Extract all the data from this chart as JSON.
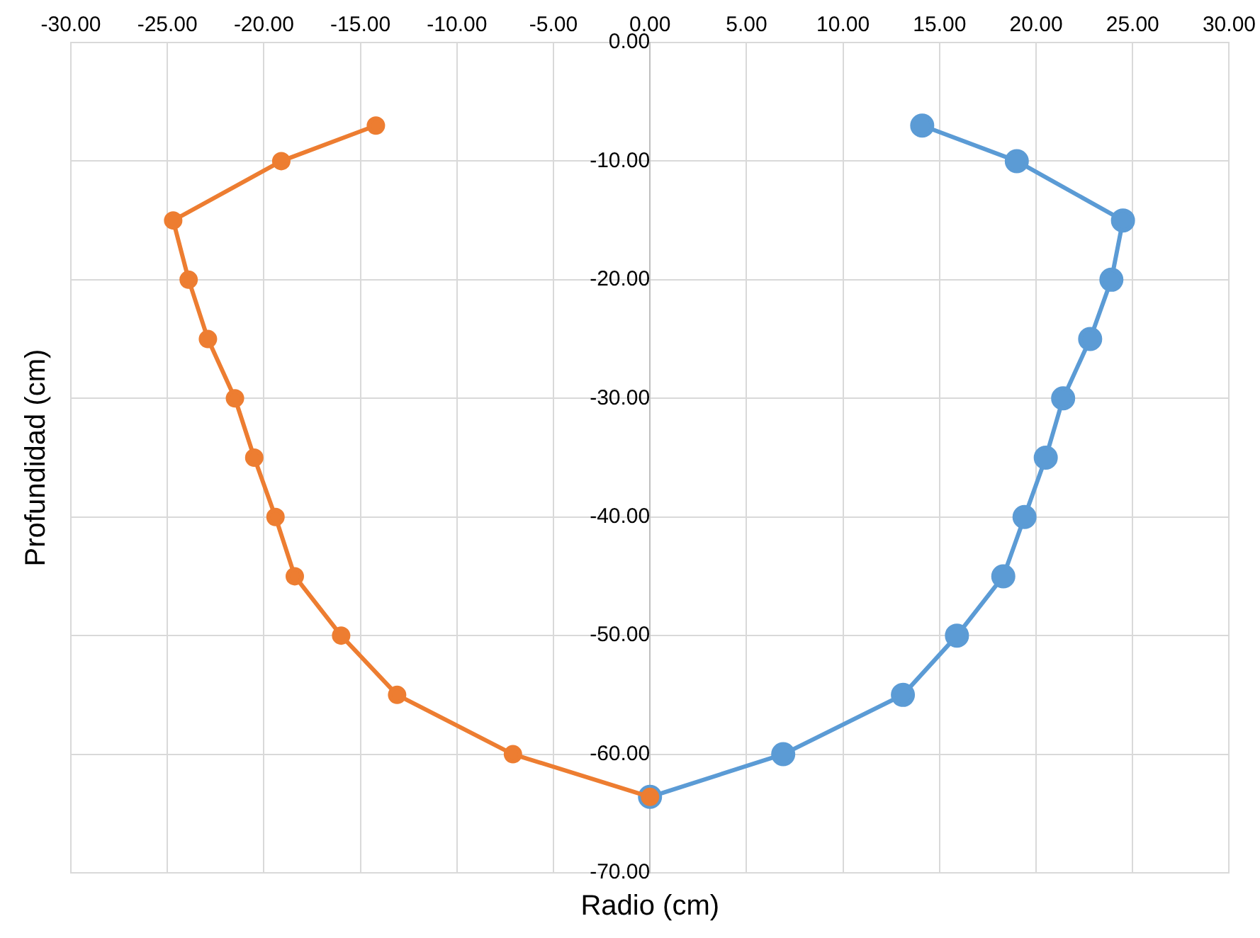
{
  "chart_data": {
    "type": "line",
    "xlabel": "Radio (cm)",
    "ylabel": "Profundidad (cm)",
    "series": [
      {
        "color": "#5b9bd5",
        "x": [
          14.1,
          19.0,
          24.5,
          23.9,
          22.8,
          21.4,
          20.5,
          19.4,
          18.3,
          15.9,
          13.1,
          6.9,
          0
        ],
        "values": [
          -7,
          -10,
          -15,
          -20,
          -25,
          -30,
          -35,
          -40,
          -45,
          -50,
          -55,
          -60,
          -63.6
        ]
      },
      {
        "color": "#ed7d31",
        "x": [
          -14.2,
          -19.1,
          -24.7,
          -23.9,
          -22.9,
          -21.5,
          -20.5,
          -19.4,
          -18.4,
          -16.0,
          -13.1,
          -7.1,
          0
        ],
        "values": [
          -7,
          -10,
          -15,
          -20,
          -25,
          -30,
          -35,
          -40,
          -45,
          -50,
          -55,
          -60,
          -63.6
        ]
      }
    ],
    "xlim": [
      -30,
      30
    ],
    "xticks": [
      {
        "value": -30,
        "label": "-30.00"
      },
      {
        "value": -25,
        "label": "-25.00"
      },
      {
        "value": -20,
        "label": "-20.00"
      },
      {
        "value": -15,
        "label": "-15.00"
      },
      {
        "value": -10,
        "label": "-10.00"
      },
      {
        "value": -5,
        "label": "-5.00"
      },
      {
        "value": 0,
        "label": "0.00"
      },
      {
        "value": 5,
        "label": "5.00"
      },
      {
        "value": 10,
        "label": "10.00"
      },
      {
        "value": 15,
        "label": "15.00"
      },
      {
        "value": 20,
        "label": "20.00"
      },
      {
        "value": 25,
        "label": "25.00"
      },
      {
        "value": 30,
        "label": "30.00"
      }
    ],
    "ylim": [
      -70,
      0
    ],
    "yticks": [
      {
        "value": 0,
        "label": "0.00"
      },
      {
        "value": -10,
        "label": "-10.00"
      },
      {
        "value": -20,
        "label": "-20.00"
      },
      {
        "value": -30,
        "label": "-30.00"
      },
      {
        "value": -40,
        "label": "-40.00"
      },
      {
        "value": -50,
        "label": "-50.00"
      },
      {
        "value": -60,
        "label": "-60.00"
      },
      {
        "value": -70,
        "label": "-70.00"
      }
    ],
    "grid": true,
    "legend": false,
    "marker": "circle",
    "line_style": "solid"
  }
}
